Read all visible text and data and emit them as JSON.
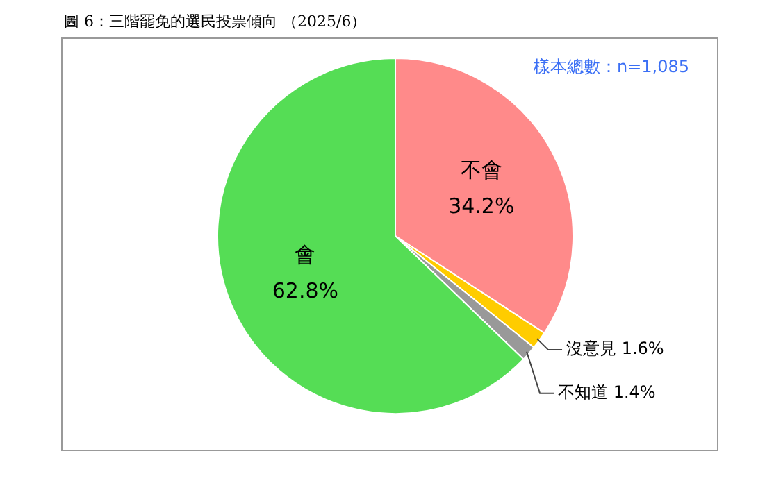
{
  "chart_data": {
    "type": "pie",
    "title": "圖 6：三階罷免的選民投票傾向 （2025/6）",
    "categories": [
      "不會",
      "沒意見",
      "不知道",
      "會"
    ],
    "values": [
      34.2,
      1.6,
      1.4,
      62.8
    ],
    "colors": [
      "#ff8a8a",
      "#ffcc00",
      "#999999",
      "#55dd55"
    ],
    "value_labels": [
      "34.2%",
      "1.6%",
      "1.4%",
      "62.8%"
    ],
    "annotations": [
      "樣本總數：n=1,085"
    ]
  }
}
